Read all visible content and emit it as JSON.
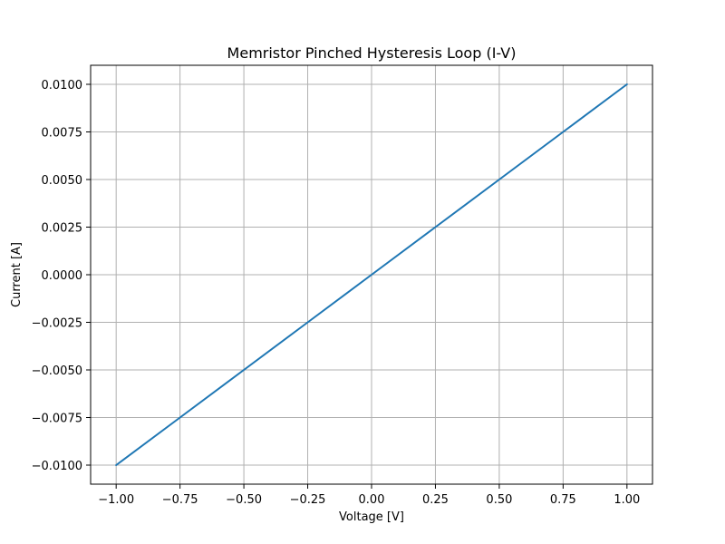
{
  "chart_data": {
    "type": "line",
    "title": "Memristor Pinched Hysteresis Loop (I-V)",
    "xlabel": "Voltage [V]",
    "ylabel": "Current [A]",
    "xlim": [
      -1.1,
      1.1
    ],
    "ylim": [
      -0.011,
      0.011
    ],
    "grid": true,
    "x_ticks": [
      -1.0,
      -0.75,
      -0.5,
      -0.25,
      0.0,
      0.25,
      0.5,
      0.75,
      1.0
    ],
    "x_tick_labels": [
      "−1.00",
      "−0.75",
      "−0.50",
      "−0.25",
      "0.00",
      "0.25",
      "0.50",
      "0.75",
      "1.00"
    ],
    "y_ticks": [
      -0.01,
      -0.0075,
      -0.005,
      -0.0025,
      0.0,
      0.0025,
      0.005,
      0.0075,
      0.01
    ],
    "y_tick_labels": [
      "−0.0100",
      "−0.0075",
      "−0.0050",
      "−0.0025",
      "0.0000",
      "0.0025",
      "0.0050",
      "0.0075",
      "0.0100"
    ],
    "series": [
      {
        "color": "#1f77b4",
        "x": [
          -1.0,
          -0.75,
          -0.5,
          -0.25,
          0.0,
          0.25,
          0.5,
          0.75,
          1.0
        ],
        "y": [
          -0.01,
          -0.0075,
          -0.005,
          -0.0025,
          0.0,
          0.0025,
          0.005,
          0.0075,
          0.01
        ]
      }
    ],
    "grid_color": "#b0b0b0",
    "axes_color": "#000000"
  }
}
